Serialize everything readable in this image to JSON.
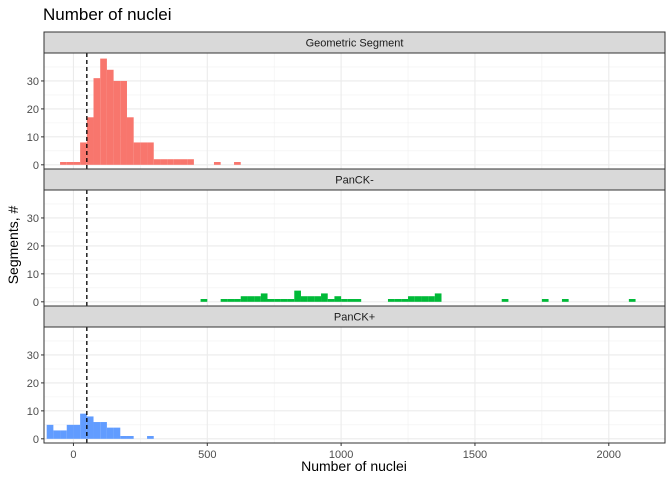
{
  "chart_data": {
    "type": "bar",
    "title": "Number of nuclei",
    "xlabel": "Number of nuclei",
    "ylabel": "Segments, #",
    "xlim": [
      -110,
      2210
    ],
    "ylim": [
      -1.5,
      40
    ],
    "xticks": [
      0,
      500,
      1000,
      1500,
      2000
    ],
    "yticks": [
      0,
      10,
      20,
      30
    ],
    "bin_width": 25,
    "reference_line": {
      "x": 50,
      "style": "dashed",
      "color": "#000000"
    },
    "grid": true,
    "panels": [
      {
        "strip_label": "Geometric Segment",
        "color": "#F8766D",
        "bins": [
          {
            "x": -50,
            "count": 1
          },
          {
            "x": -25,
            "count": 1
          },
          {
            "x": 0,
            "count": 1
          },
          {
            "x": 25,
            "count": 8
          },
          {
            "x": 50,
            "count": 17
          },
          {
            "x": 75,
            "count": 31
          },
          {
            "x": 100,
            "count": 38
          },
          {
            "x": 125,
            "count": 34
          },
          {
            "x": 150,
            "count": 30
          },
          {
            "x": 175,
            "count": 30
          },
          {
            "x": 200,
            "count": 17
          },
          {
            "x": 225,
            "count": 8
          },
          {
            "x": 250,
            "count": 8
          },
          {
            "x": 275,
            "count": 8
          },
          {
            "x": 300,
            "count": 2
          },
          {
            "x": 325,
            "count": 2
          },
          {
            "x": 350,
            "count": 2
          },
          {
            "x": 375,
            "count": 2
          },
          {
            "x": 400,
            "count": 2
          },
          {
            "x": 425,
            "count": 2
          },
          {
            "x": 525,
            "count": 1
          },
          {
            "x": 600,
            "count": 1
          }
        ]
      },
      {
        "strip_label": "PanCK-",
        "color": "#00BA38",
        "bins": [
          {
            "x": 475,
            "count": 1
          },
          {
            "x": 550,
            "count": 1
          },
          {
            "x": 575,
            "count": 1
          },
          {
            "x": 600,
            "count": 1
          },
          {
            "x": 625,
            "count": 2
          },
          {
            "x": 650,
            "count": 2
          },
          {
            "x": 675,
            "count": 2
          },
          {
            "x": 700,
            "count": 3
          },
          {
            "x": 725,
            "count": 1
          },
          {
            "x": 750,
            "count": 1
          },
          {
            "x": 775,
            "count": 1
          },
          {
            "x": 800,
            "count": 1
          },
          {
            "x": 825,
            "count": 4
          },
          {
            "x": 850,
            "count": 2
          },
          {
            "x": 875,
            "count": 2
          },
          {
            "x": 900,
            "count": 2
          },
          {
            "x": 925,
            "count": 3
          },
          {
            "x": 950,
            "count": 1
          },
          {
            "x": 975,
            "count": 2
          },
          {
            "x": 1000,
            "count": 1
          },
          {
            "x": 1025,
            "count": 1
          },
          {
            "x": 1050,
            "count": 1
          },
          {
            "x": 1175,
            "count": 1
          },
          {
            "x": 1200,
            "count": 1
          },
          {
            "x": 1225,
            "count": 1
          },
          {
            "x": 1250,
            "count": 2
          },
          {
            "x": 1275,
            "count": 2
          },
          {
            "x": 1300,
            "count": 2
          },
          {
            "x": 1325,
            "count": 2
          },
          {
            "x": 1350,
            "count": 3
          },
          {
            "x": 1600,
            "count": 1
          },
          {
            "x": 1750,
            "count": 1
          },
          {
            "x": 1825,
            "count": 1
          },
          {
            "x": 2075,
            "count": 1
          }
        ]
      },
      {
        "strip_label": "PanCK+",
        "color": "#619CFF",
        "bins": [
          {
            "x": -100,
            "count": 5
          },
          {
            "x": -75,
            "count": 3
          },
          {
            "x": -50,
            "count": 3
          },
          {
            "x": -25,
            "count": 5
          },
          {
            "x": 0,
            "count": 5
          },
          {
            "x": 25,
            "count": 9
          },
          {
            "x": 50,
            "count": 8
          },
          {
            "x": 75,
            "count": 6
          },
          {
            "x": 100,
            "count": 6
          },
          {
            "x": 125,
            "count": 4
          },
          {
            "x": 150,
            "count": 4
          },
          {
            "x": 175,
            "count": 1
          },
          {
            "x": 200,
            "count": 1
          },
          {
            "x": 275,
            "count": 1
          }
        ]
      }
    ]
  }
}
